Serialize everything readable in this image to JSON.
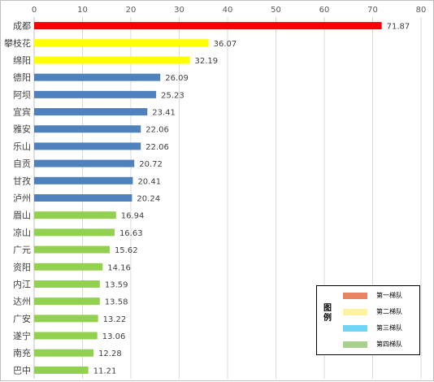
{
  "chart_data": {
    "type": "bar",
    "orientation": "horizontal",
    "xlim": [
      0,
      80
    ],
    "x_ticks": [
      "0",
      "10",
      "20",
      "30",
      "40",
      "50",
      "60",
      "70",
      "80"
    ],
    "grid": true,
    "categories": [
      "成都",
      "攀枝花",
      "绵阳",
      "德阳",
      "阿坝",
      "宜宾",
      "雅安",
      "乐山",
      "自贡",
      "甘孜",
      "泸州",
      "眉山",
      "凉山",
      "广元",
      "资阳",
      "内江",
      "达州",
      "广安",
      "遂宁",
      "南充",
      "巴中"
    ],
    "values": [
      71.87,
      36.07,
      32.19,
      26.09,
      25.23,
      23.41,
      22.06,
      22.06,
      20.72,
      20.41,
      20.24,
      16.94,
      16.63,
      15.62,
      14.16,
      13.59,
      13.58,
      13.22,
      13.06,
      12.28,
      11.21
    ],
    "value_labels": [
      "71.87",
      "36.07",
      "32.19",
      "26.09",
      "25.23",
      "23.41",
      "22.06",
      "22.06",
      "20.72",
      "20.41",
      "20.24",
      "16.94",
      "16.63",
      "15.62",
      "14.16",
      "13.59",
      "13.58",
      "13.22",
      "13.06",
      "12.28",
      "11.21"
    ],
    "tiers": [
      0,
      1,
      1,
      2,
      2,
      2,
      2,
      2,
      2,
      2,
      2,
      3,
      3,
      3,
      3,
      3,
      3,
      3,
      3,
      3,
      3
    ],
    "bar_colors": [
      "#ff0000",
      "#ffff00",
      "#4f81bd",
      "#92d050"
    ],
    "legend": {
      "title": "图例",
      "placement": "bottom-right",
      "items": [
        {
          "label": "第一梯队",
          "color": "#e8845f"
        },
        {
          "label": "第二梯队",
          "color": "#fff2a0"
        },
        {
          "label": "第三梯队",
          "color": "#6fd3f5"
        },
        {
          "label": "第四梯队",
          "color": "#a9d18e"
        }
      ]
    }
  }
}
